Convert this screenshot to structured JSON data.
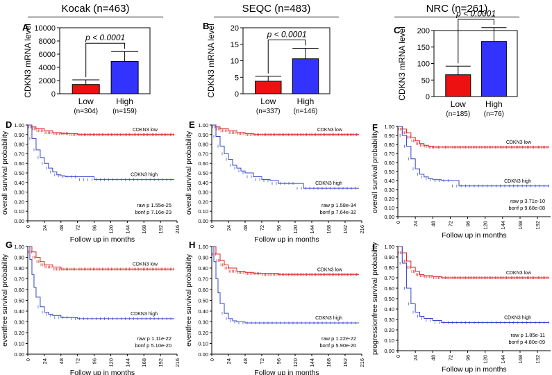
{
  "headers": [
    {
      "id": "kocak",
      "text": "Kocak  (n=463)"
    },
    {
      "id": "seqc",
      "text": "SEQC  (n=483)"
    },
    {
      "id": "nrc",
      "text": "NRC (n=261)"
    }
  ],
  "colors": {
    "low": "#ee1111",
    "high": "#3333ff",
    "km_low": "#dd2222",
    "km_high": "#3344cc"
  },
  "chart_data": [
    {
      "panel": "A",
      "type": "bar",
      "ylabel": "CDKN3 mRNA level",
      "ylim": [
        0,
        10000
      ],
      "yticks": [
        "0",
        "2000",
        "4000",
        "6000",
        "8000",
        "10000"
      ],
      "categories": [
        "Low",
        "High"
      ],
      "ns": [
        "(n=304)",
        "(n=159)"
      ],
      "values": [
        1400,
        4900
      ],
      "errors": [
        700,
        1500
      ],
      "pvalue": "p < 0.0001"
    },
    {
      "panel": "B",
      "type": "bar",
      "ylabel": "CDKN3 mRNA level",
      "ylim": [
        0,
        20
      ],
      "yticks": [
        "0",
        "5",
        "10",
        "15",
        "20"
      ],
      "categories": [
        "Low",
        "High"
      ],
      "ns": [
        "(n=337)",
        "(n=146)"
      ],
      "values": [
        3.8,
        10.6
      ],
      "errors": [
        1.5,
        3.2
      ],
      "pvalue": "p < 0.0001"
    },
    {
      "panel": "C",
      "type": "bar",
      "ylabel": "CDKN3 mRNA level",
      "ylim": [
        0,
        200
      ],
      "yticks": [
        "0",
        "50",
        "100",
        "150",
        "200"
      ],
      "categories": [
        "Low",
        "High"
      ],
      "ns": [
        "(n=185)",
        "(n=76)"
      ],
      "values": [
        66,
        167
      ],
      "errors": [
        26,
        42
      ],
      "pvalue": "p < 0.0001"
    },
    {
      "panel": "D",
      "type": "line",
      "ylabel": "overall survival probability",
      "xlabel": "Follow up in months",
      "xlim": [
        0,
        216
      ],
      "xticks": [
        "0",
        "24",
        "48",
        "72",
        "96",
        "120",
        "144",
        "168",
        "192",
        "216"
      ],
      "yticks": [
        "0.00",
        "0.10",
        "0.20",
        "0.30",
        "0.40",
        "0.50",
        "0.60",
        "0.70",
        "0.80",
        "0.90",
        "1.00"
      ],
      "series": [
        {
          "name": "CDKN3 low",
          "key": "low",
          "x": [
            0,
            6,
            12,
            24,
            36,
            48,
            60,
            72,
            96,
            120,
            144,
            168,
            192,
            212
          ],
          "y": [
            1.0,
            0.98,
            0.96,
            0.94,
            0.92,
            0.91,
            0.91,
            0.9,
            0.9,
            0.9,
            0.9,
            0.9,
            0.9,
            0.9
          ]
        },
        {
          "name": "CDKN3 high",
          "key": "high",
          "x": [
            0,
            6,
            12,
            18,
            24,
            30,
            36,
            42,
            48,
            54,
            60,
            72,
            96,
            120,
            144,
            168,
            192,
            212
          ],
          "y": [
            1.0,
            0.86,
            0.74,
            0.66,
            0.6,
            0.55,
            0.51,
            0.48,
            0.47,
            0.46,
            0.46,
            0.46,
            0.43,
            0.43,
            0.43,
            0.43,
            0.43,
            0.43
          ]
        }
      ],
      "stats": [
        "raw p 1.55e-25",
        "bonf p 7.16e-23"
      ]
    },
    {
      "panel": "E",
      "type": "line",
      "ylabel": "overall survival probability",
      "xlabel": "Follow up in months",
      "xlim": [
        0,
        216
      ],
      "xticks": [
        "0",
        "24",
        "48",
        "72",
        "96",
        "120",
        "144",
        "168",
        "192",
        "216"
      ],
      "yticks": [
        "0.00",
        "0.10",
        "0.20",
        "0.30",
        "0.40",
        "0.50",
        "0.60",
        "0.70",
        "0.80",
        "0.90",
        "1.00"
      ],
      "series": [
        {
          "name": "CDKN3 low",
          "key": "low",
          "x": [
            0,
            6,
            12,
            24,
            36,
            48,
            60,
            72,
            96,
            120,
            144,
            168,
            192,
            212
          ],
          "y": [
            1.0,
            0.98,
            0.96,
            0.94,
            0.92,
            0.91,
            0.9,
            0.9,
            0.9,
            0.9,
            0.9,
            0.9,
            0.9,
            0.9
          ]
        },
        {
          "name": "CDKN3 high",
          "key": "high",
          "x": [
            0,
            6,
            12,
            18,
            24,
            30,
            36,
            42,
            48,
            60,
            72,
            84,
            96,
            120,
            132,
            144,
            168,
            192,
            212
          ],
          "y": [
            1.0,
            0.88,
            0.78,
            0.7,
            0.64,
            0.58,
            0.55,
            0.52,
            0.5,
            0.46,
            0.43,
            0.42,
            0.39,
            0.39,
            0.34,
            0.34,
            0.34,
            0.34,
            0.34
          ]
        }
      ],
      "stats": [
        "raw p 1.58e-34",
        "bonf p 7.64e-32"
      ]
    },
    {
      "panel": "F",
      "type": "line",
      "ylabel": "overall survival probability",
      "xlabel": "Follow up in months",
      "xlim": [
        0,
        210
      ],
      "xticks": [
        "0",
        "24",
        "48",
        "72",
        "96",
        "120",
        "144",
        "168",
        "192"
      ],
      "yticks": [
        "0.00",
        "0.10",
        "0.20",
        "0.30",
        "0.40",
        "0.50",
        "0.60",
        "0.70",
        "0.80",
        "0.90",
        "1.00"
      ],
      "series": [
        {
          "name": "CDKN3 low",
          "key": "low",
          "x": [
            0,
            6,
            12,
            18,
            24,
            30,
            36,
            42,
            48,
            60,
            72,
            96,
            120,
            144,
            168,
            192,
            208
          ],
          "y": [
            1.0,
            0.97,
            0.93,
            0.88,
            0.84,
            0.81,
            0.79,
            0.78,
            0.77,
            0.77,
            0.77,
            0.77,
            0.77,
            0.77,
            0.77,
            0.77,
            0.77
          ]
        },
        {
          "name": "CDKN3 high",
          "key": "high",
          "x": [
            0,
            6,
            12,
            18,
            24,
            30,
            36,
            42,
            48,
            60,
            72,
            84,
            96,
            120,
            144,
            168,
            192,
            208
          ],
          "y": [
            1.0,
            0.9,
            0.78,
            0.64,
            0.53,
            0.47,
            0.44,
            0.42,
            0.41,
            0.4,
            0.4,
            0.34,
            0.34,
            0.34,
            0.34,
            0.34,
            0.34,
            0.34
          ]
        }
      ],
      "stats": [
        "raw p 3.71e-10",
        "bonf p 9.68e-08"
      ]
    },
    {
      "panel": "G",
      "type": "line",
      "ylabel": "eventfree survival probability",
      "xlabel": "Follow up in months",
      "xlim": [
        0,
        216
      ],
      "xticks": [
        "0",
        "24",
        "48",
        "72",
        "96",
        "120",
        "144",
        "168",
        "192",
        "216"
      ],
      "yticks": [
        "0.00",
        "0.10",
        "0.20",
        "0.30",
        "0.40",
        "0.50",
        "0.60",
        "0.70",
        "0.80",
        "0.90",
        "1.00"
      ],
      "series": [
        {
          "name": "CDKN3 low",
          "key": "low",
          "x": [
            0,
            6,
            12,
            18,
            24,
            36,
            48,
            60,
            72,
            96,
            120,
            144,
            168,
            192,
            212
          ],
          "y": [
            1.0,
            0.95,
            0.9,
            0.86,
            0.83,
            0.81,
            0.79,
            0.79,
            0.79,
            0.79,
            0.79,
            0.79,
            0.79,
            0.79,
            0.79
          ]
        },
        {
          "name": "CDKN3 high",
          "key": "high",
          "x": [
            0,
            3,
            6,
            9,
            12,
            18,
            24,
            30,
            36,
            48,
            60,
            72,
            96,
            120,
            144,
            168,
            192,
            212
          ],
          "y": [
            1.0,
            0.88,
            0.74,
            0.62,
            0.53,
            0.44,
            0.39,
            0.37,
            0.36,
            0.34,
            0.34,
            0.33,
            0.33,
            0.33,
            0.33,
            0.33,
            0.33,
            0.33
          ]
        }
      ],
      "stats": [
        "raw p 1.11e-22",
        "bonf p 5.10e-20"
      ]
    },
    {
      "panel": "H",
      "type": "line",
      "ylabel": "eventfree survival probability",
      "xlabel": "Follow up in months",
      "xlim": [
        0,
        216
      ],
      "xticks": [
        "0",
        "24",
        "48",
        "72",
        "96",
        "120",
        "144",
        "168",
        "192",
        "216"
      ],
      "yticks": [
        "0.00",
        "0.10",
        "0.20",
        "0.30",
        "0.40",
        "0.50",
        "0.60",
        "0.70",
        "0.80",
        "0.90",
        "1.00"
      ],
      "series": [
        {
          "name": "CDKN3 low",
          "key": "low",
          "x": [
            0,
            6,
            12,
            18,
            24,
            36,
            48,
            60,
            72,
            96,
            120,
            144,
            168,
            192,
            212
          ],
          "y": [
            1.0,
            0.93,
            0.87,
            0.83,
            0.8,
            0.77,
            0.76,
            0.75,
            0.75,
            0.74,
            0.74,
            0.74,
            0.74,
            0.74,
            0.74
          ]
        },
        {
          "name": "CDKN3 high",
          "key": "high",
          "x": [
            0,
            3,
            6,
            9,
            12,
            18,
            24,
            30,
            36,
            48,
            60,
            72,
            96,
            120,
            144,
            168,
            192,
            212
          ],
          "y": [
            1.0,
            0.86,
            0.7,
            0.57,
            0.47,
            0.38,
            0.33,
            0.31,
            0.3,
            0.29,
            0.29,
            0.29,
            0.29,
            0.29,
            0.29,
            0.29,
            0.29,
            0.29
          ]
        }
      ],
      "stats": [
        "raw p 1.22e-22",
        "bonf p 5.90e-20"
      ]
    },
    {
      "panel": "I",
      "type": "line",
      "ylabel": "progressionfree survival probability",
      "xlabel": "Follow up in months",
      "xlim": [
        0,
        210
      ],
      "xticks": [
        "0",
        "24",
        "48",
        "72",
        "96",
        "120",
        "144",
        "168",
        "192"
      ],
      "yticks": [
        "0.00",
        "0.10",
        "0.20",
        "0.30",
        "0.40",
        "0.50",
        "0.60",
        "0.70",
        "0.80",
        "0.90",
        "1.00"
      ],
      "series": [
        {
          "name": "CDKN3 low",
          "key": "low",
          "x": [
            0,
            6,
            12,
            18,
            24,
            30,
            36,
            48,
            60,
            72,
            96,
            120,
            144,
            168,
            192,
            208
          ],
          "y": [
            1.0,
            0.94,
            0.86,
            0.8,
            0.76,
            0.73,
            0.72,
            0.71,
            0.7,
            0.7,
            0.7,
            0.7,
            0.7,
            0.7,
            0.7,
            0.7
          ]
        },
        {
          "name": "CDKN3 high",
          "key": "high",
          "x": [
            0,
            6,
            12,
            18,
            24,
            30,
            36,
            48,
            60,
            72,
            96,
            120,
            144,
            168,
            192,
            208
          ],
          "y": [
            1.0,
            0.84,
            0.6,
            0.45,
            0.37,
            0.33,
            0.31,
            0.29,
            0.27,
            0.27,
            0.27,
            0.27,
            0.27,
            0.27,
            0.27,
            0.27
          ]
        }
      ],
      "stats": [
        "raw p 1.85e-11",
        "bonf p 4.80e-09"
      ]
    }
  ]
}
